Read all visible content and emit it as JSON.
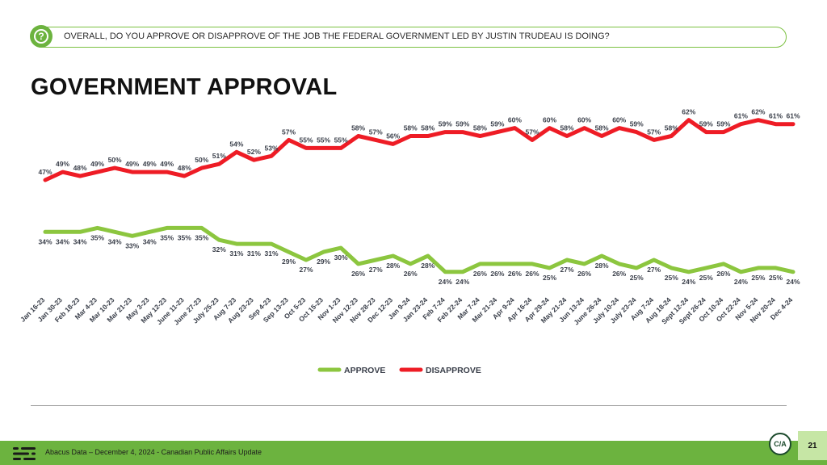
{
  "question": "OVERALL, DO YOU APPROVE OR DISAPPROVE OF THE JOB THE FEDERAL GOVERNMENT LED BY JUSTIN TRUDEAU IS DOING?",
  "title": "GOVERNMENT APPROVAL",
  "footer": {
    "source": "Abacus Data – December 4, 2024 - Canadian Public Affairs Update",
    "badge": "C/A",
    "page_number": "21"
  },
  "chart_data": {
    "type": "line",
    "categories": [
      "Jan 16-23",
      "Jan 30-23",
      "Feb 18-23",
      "Mar 4-23",
      "Mar 10-23",
      "Mar 21-23",
      "May 3-23",
      "May 12-23",
      "June 11-23",
      "June 27-23",
      "July 25-23",
      "Aug 7-23",
      "Aug 23-23",
      "Sep 4-23",
      "Sep 13-23",
      "Oct 5-23",
      "Oct 15-23",
      "Nov 1-23",
      "Nov 12-23",
      "Nov 28-23",
      "Dec 12-23",
      "Jan 9-24",
      "Jan 23-24",
      "Feb 7-24",
      "Feb 22-24",
      "Mar 7-24",
      "Mar 21-24",
      "Apr 9-24",
      "Apr 16-24",
      "Apr 29-24",
      "May 21-24",
      "Jun 13-24",
      "June 26-24",
      "July 10-24",
      "July 23-24",
      "Aug 7-24",
      "Aug 18-24",
      "Sept 12-24",
      "Sept 26-24",
      "Oct 10-24",
      "Oct 22-24",
      "Nov 5-24",
      "Nov 20-24",
      "Dec 4-24"
    ],
    "series": [
      {
        "name": "APPROVE",
        "color": "#8cc63f",
        "values": [
          34,
          34,
          34,
          35,
          34,
          33,
          34,
          35,
          35,
          35,
          32,
          31,
          31,
          31,
          29,
          27,
          29,
          30,
          26,
          27,
          28,
          26,
          28,
          24,
          24,
          26,
          26,
          26,
          26,
          25,
          27,
          26,
          28,
          26,
          25,
          27,
          25,
          24,
          25,
          26,
          24,
          25,
          25,
          24
        ]
      },
      {
        "name": "DISAPPROVE",
        "color": "#ee1c25",
        "values": [
          47,
          49,
          48,
          49,
          50,
          49,
          49,
          49,
          48,
          50,
          51,
          54,
          52,
          53,
          57,
          55,
          55,
          55,
          58,
          57,
          56,
          58,
          58,
          59,
          59,
          58,
          59,
          60,
          57,
          60,
          58,
          60,
          58,
          60,
          59,
          57,
          58,
          62,
          59,
          59,
          61,
          62,
          61,
          61
        ]
      }
    ],
    "legend_position": "bottom-center",
    "grid": false
  }
}
